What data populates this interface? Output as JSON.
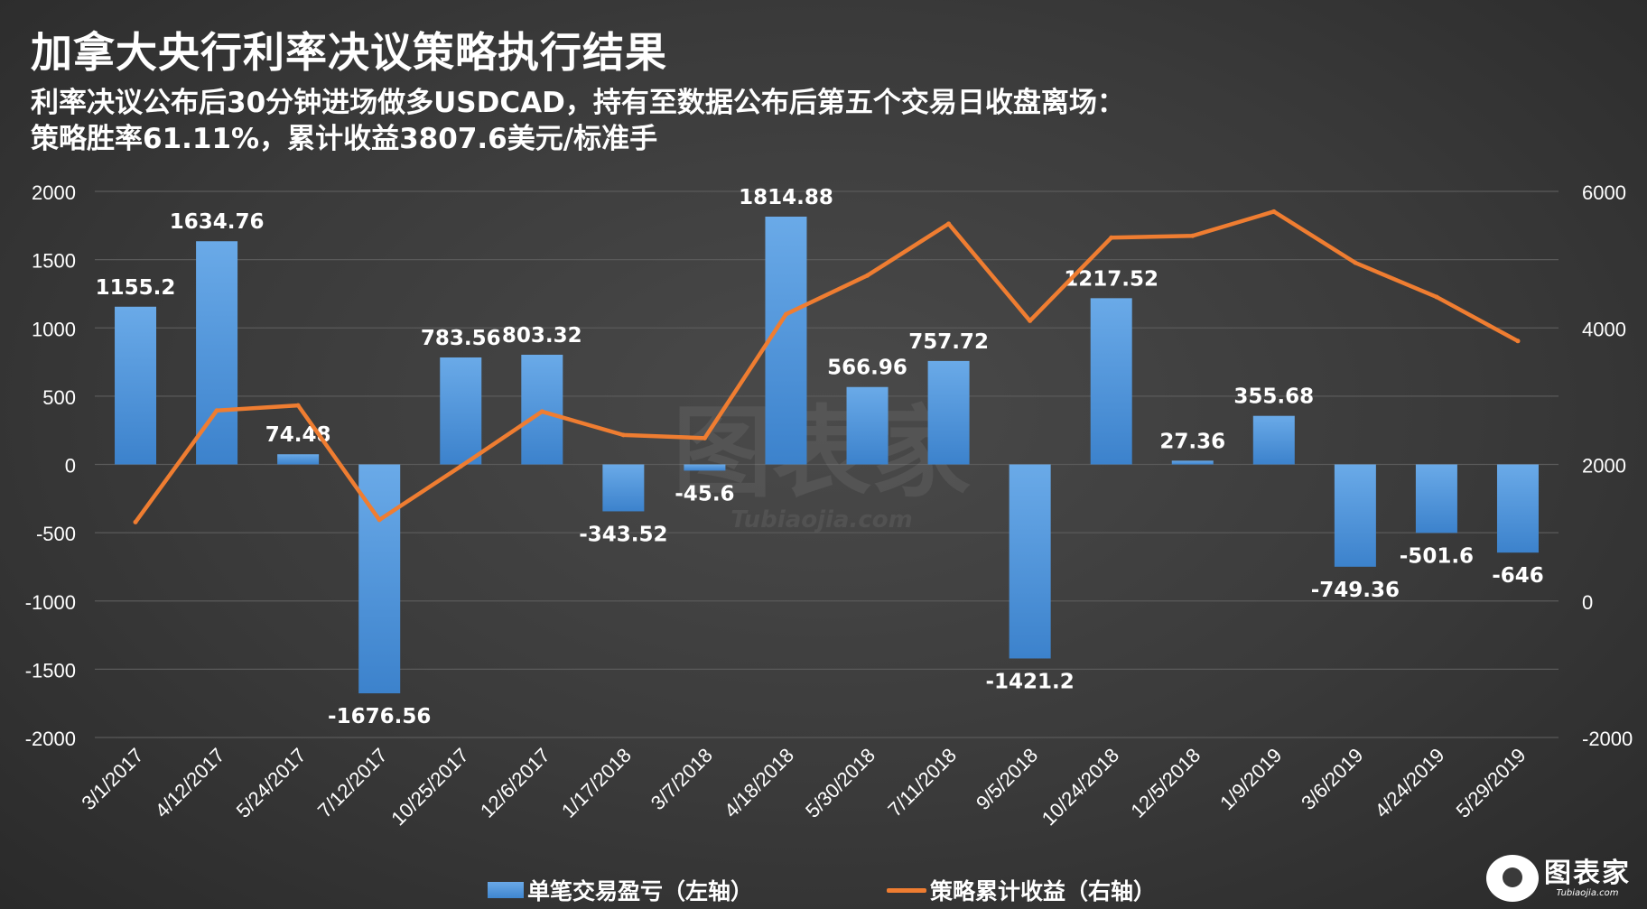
{
  "title": "加拿大央行利率决议策略执行结果",
  "subtitle_line1": "利率决议公布后30分钟进场做多USDCAD，持有至数据公布后第五个交易日收盘离场：",
  "subtitle_line2": "策略胜率61.11%，累计收益3807.6美元/标准手",
  "legend": {
    "bar_label": "单笔交易盈亏（左轴）",
    "line_label": "策略累计收益（右轴）"
  },
  "watermark": {
    "text": "图表家",
    "url": "Tubiaojia.com"
  },
  "brand": {
    "name": "图表家",
    "url": "Tubiaojia.com"
  },
  "colors": {
    "bar": "#4a90d9",
    "line": "#ef7d31",
    "background": "#3a3a3a",
    "grid": "#5a5a5a"
  },
  "chart_data": {
    "type": "bar",
    "categories": [
      "3/1/2017",
      "4/12/2017",
      "5/24/2017",
      "7/12/2017",
      "10/25/2017",
      "12/6/2017",
      "1/17/2018",
      "3/7/2018",
      "4/18/2018",
      "5/30/2018",
      "7/11/2018",
      "9/5/2018",
      "10/24/2018",
      "12/5/2018",
      "1/9/2019",
      "3/6/2019",
      "4/24/2019",
      "5/29/2019"
    ],
    "series": [
      {
        "name": "单笔交易盈亏（左轴）",
        "type": "bar",
        "axis": "left",
        "values": [
          1155.2,
          1634.76,
          74.48,
          -1676.56,
          783.56,
          803.32,
          -343.52,
          -45.6,
          1814.88,
          566.96,
          757.72,
          -1421.2,
          1217.52,
          27.36,
          355.68,
          -749.36,
          -501.6,
          -646
        ]
      },
      {
        "name": "策略累计收益（右轴）",
        "type": "line",
        "axis": "right",
        "values": [
          1155.2,
          2789.96,
          2864.44,
          1187.88,
          1971.44,
          2774.76,
          2431.24,
          2385.64,
          4200.52,
          4767.48,
          5525.2,
          4104,
          5321.52,
          5348.88,
          5704.56,
          4955.2,
          4453.6,
          3807.6
        ]
      }
    ],
    "data_labels": [
      "1155.2",
      "1634.76",
      "74.48",
      "-1676.56",
      "783.56",
      "803.32",
      "-343.52",
      "-45.6",
      "1814.88",
      "566.96",
      "757.72",
      "-1421.2",
      "1217.52",
      "27.36",
      "355.68",
      "-749.36",
      "-501.6",
      "-646"
    ],
    "left_axis": {
      "ylim": [
        -2000,
        2000
      ],
      "ticks": [
        "2000",
        "1500",
        "1000",
        "500",
        "0",
        "-500",
        "-1000",
        "-1500",
        "-2000"
      ]
    },
    "right_axis": {
      "ylim": [
        -2000,
        6000
      ],
      "ticks": [
        "6000",
        "4000",
        "2000",
        "0",
        "-2000"
      ]
    },
    "grid": true,
    "legend_position": "bottom"
  }
}
